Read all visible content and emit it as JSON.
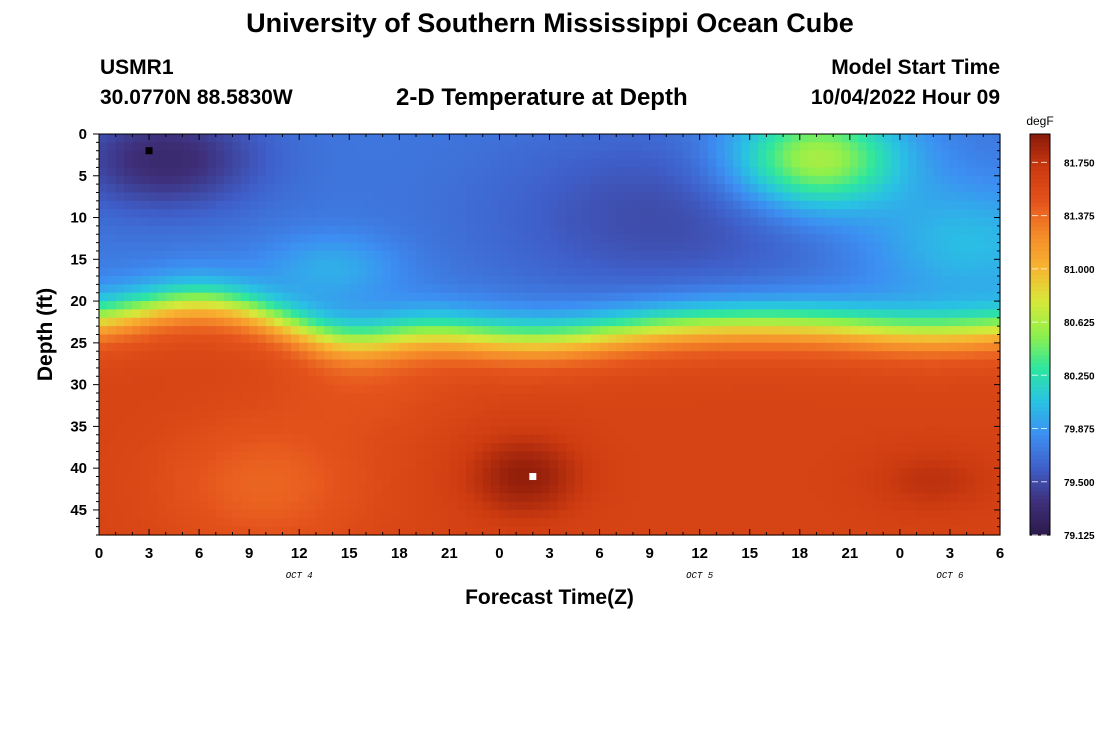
{
  "header": {
    "title": "University of Southern Mississippi Ocean Cube",
    "station_id": "USMR1",
    "station_coords": "30.0770N  88.5830W",
    "plot_title": "2-D Temperature at Depth",
    "start_label": "Model Start Time",
    "start_value": "10/04/2022 Hour 09"
  },
  "footer": {
    "title": "University of Southern Mississippi Ocean Cube"
  },
  "chart_data": {
    "type": "heatmap",
    "xlabel": "Forecast Time(Z)",
    "ylabel": "Depth (ft)",
    "colorbar_label": "degF",
    "x_tick_labels": [
      "0",
      "3",
      "6",
      "9",
      "12",
      "15",
      "18",
      "21",
      "0",
      "3",
      "6",
      "9",
      "12",
      "15",
      "18",
      "21",
      "0",
      "3",
      "6"
    ],
    "x_range_hours_from_oct4_00z": [
      0,
      54
    ],
    "day_labels": [
      {
        "label": "OCT 4",
        "at_hour": 12
      },
      {
        "label": "OCT 5",
        "at_hour": 36
      },
      {
        "label": "OCT 6",
        "at_hour": 51
      }
    ],
    "y_range_ft": [
      0,
      48
    ],
    "y_reversed": true,
    "y_ticks": [
      0,
      5,
      10,
      15,
      20,
      25,
      30,
      35,
      40,
      45
    ],
    "color_range": [
      79.125,
      81.95
    ],
    "colorbar_ticks": [
      "79.125",
      "79.500",
      "79.875",
      "80.250",
      "80.625",
      "81.000",
      "81.375",
      "81.750"
    ],
    "colorscale": [
      "#2c1a4a",
      "#3e2f7a",
      "#3f5ec8",
      "#3d8ef2",
      "#29c2e3",
      "#2ee6a0",
      "#8ff04b",
      "#d6e83a",
      "#f7b531",
      "#f58a2a",
      "#e5531c",
      "#cc3a10",
      "#8a1a0a"
    ],
    "markers": [
      {
        "name": "min",
        "x_hour": 3,
        "depth_ft": 2,
        "color": "#000000"
      },
      {
        "name": "max",
        "x_hour": 26,
        "depth_ft": 41,
        "color": "#ffffff"
      }
    ],
    "grid": false
  }
}
